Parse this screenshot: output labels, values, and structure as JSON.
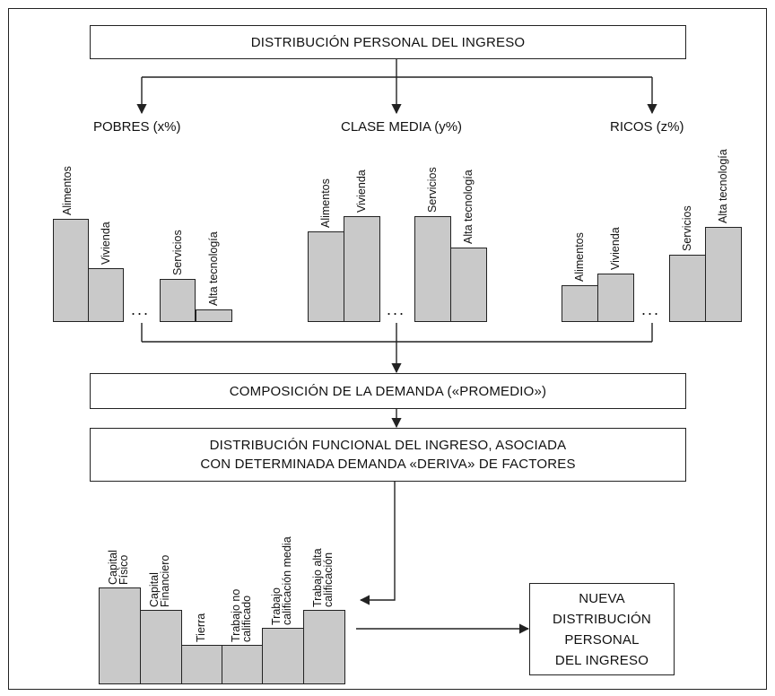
{
  "title": "DISTRIBUCIÓN PERSONAL DEL INGRESO",
  "groups": [
    {
      "label": "POBRES (x%)",
      "categories": [
        "Alimentos",
        "Vivienda",
        "Servicios",
        "Alta tecnología"
      ]
    },
    {
      "label": "CLASE MEDIA (y%)",
      "categories": [
        "Alimentos",
        "Vivienda",
        "Servicios",
        "Alta tecnología"
      ]
    },
    {
      "label": "RICOS (z%)",
      "categories": [
        "Alimentos",
        "Vivienda",
        "Servicios",
        "Alta tecnología"
      ]
    }
  ],
  "ellipsis": "...",
  "demand_box": "COMPOSICIÓN DE LA DEMANDA («PROMEDIO»)",
  "functional_box": {
    "line1": "DISTRIBUCIÓN FUNCIONAL DEL INGRESO, ASOCIADA",
    "line2": "CON DETERMINADA DEMANDA «DERIVA» DE FACTORES"
  },
  "factors": [
    "Capital\nFísico",
    "Capital\nFinanciero",
    "Tierra",
    "Trabajo no\ncalificado",
    "Trabajo\ncalificación media",
    "Trabajo alta\ncalificación"
  ],
  "new_box": {
    "line1": "NUEVA",
    "line2": "DISTRIBUCIÓN",
    "line3": "PERSONAL",
    "line4": "DEL INGRESO"
  },
  "colors": {
    "bar_fill": "#c9c9c9",
    "stroke": "#222222"
  }
}
